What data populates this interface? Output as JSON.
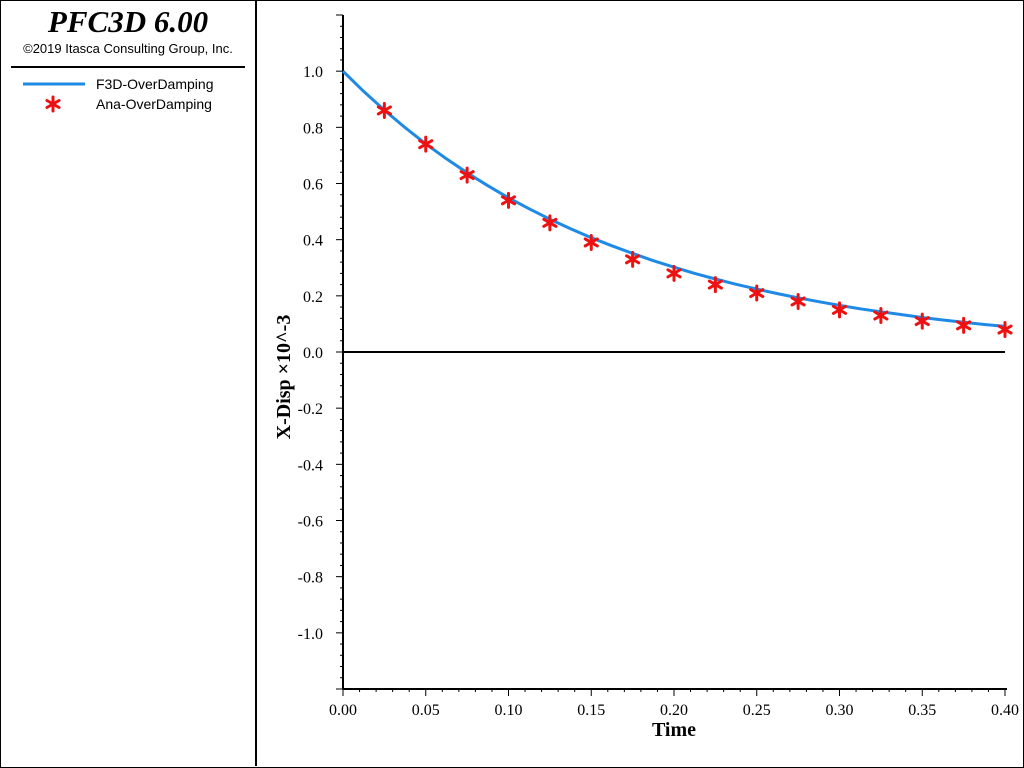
{
  "header": {
    "app_title": "PFC3D 6.00",
    "copyright": "©2019 Itasca Consulting Group, Inc."
  },
  "colors": {
    "line_series": "#1e8ae6",
    "marker_series": "#ee1111",
    "axis": "#000000"
  },
  "legend": {
    "items": [
      {
        "label": "F3D-OverDamping",
        "symbol": "line"
      },
      {
        "label": "Ana-OverDamping",
        "symbol": "asterisk"
      }
    ]
  },
  "chart_data": {
    "type": "line",
    "title": "",
    "xlabel": "Time",
    "ylabel": "X-Disp ×10^-3",
    "xlim": [
      0.0,
      0.4
    ],
    "ylim": [
      -1.2,
      1.2
    ],
    "xticks": [
      "0.00",
      "0.05",
      "0.10",
      "0.15",
      "0.20",
      "0.25",
      "0.30",
      "0.35",
      "0.40"
    ],
    "yticks": [
      "1.0",
      "0.8",
      "0.6",
      "0.4",
      "0.2",
      "0.0",
      "-0.2",
      "-0.4",
      "-0.6",
      "-0.8",
      "-1.0"
    ],
    "zero_line": true,
    "grid": false,
    "legend_placement": "left-panel",
    "series": [
      {
        "name": "F3D-OverDamping",
        "style": "line",
        "x": [
          0.0,
          0.0125,
          0.025,
          0.0375,
          0.05,
          0.0625,
          0.075,
          0.0875,
          0.1,
          0.1125,
          0.125,
          0.1375,
          0.15,
          0.1625,
          0.175,
          0.1875,
          0.2,
          0.2125,
          0.225,
          0.2375,
          0.25,
          0.2625,
          0.275,
          0.2875,
          0.3,
          0.3125,
          0.325,
          0.3375,
          0.35,
          0.3625,
          0.375,
          0.3875,
          0.4
        ],
        "y": [
          1.0,
          0.928,
          0.861,
          0.799,
          0.741,
          0.688,
          0.638,
          0.592,
          0.549,
          0.51,
          0.473,
          0.439,
          0.407,
          0.378,
          0.351,
          0.325,
          0.302,
          0.28,
          0.26,
          0.241,
          0.224,
          0.208,
          0.193,
          0.179,
          0.166,
          0.154,
          0.143,
          0.133,
          0.123,
          0.114,
          0.106,
          0.098,
          0.091
        ]
      },
      {
        "name": "Ana-OverDamping",
        "style": "asterisk",
        "x": [
          0.025,
          0.05,
          0.075,
          0.1,
          0.125,
          0.15,
          0.175,
          0.2,
          0.225,
          0.25,
          0.275,
          0.3,
          0.325,
          0.35,
          0.375,
          0.4
        ],
        "y": [
          0.86,
          0.74,
          0.63,
          0.54,
          0.46,
          0.39,
          0.33,
          0.28,
          0.24,
          0.21,
          0.18,
          0.15,
          0.13,
          0.11,
          0.095,
          0.08
        ]
      }
    ]
  }
}
